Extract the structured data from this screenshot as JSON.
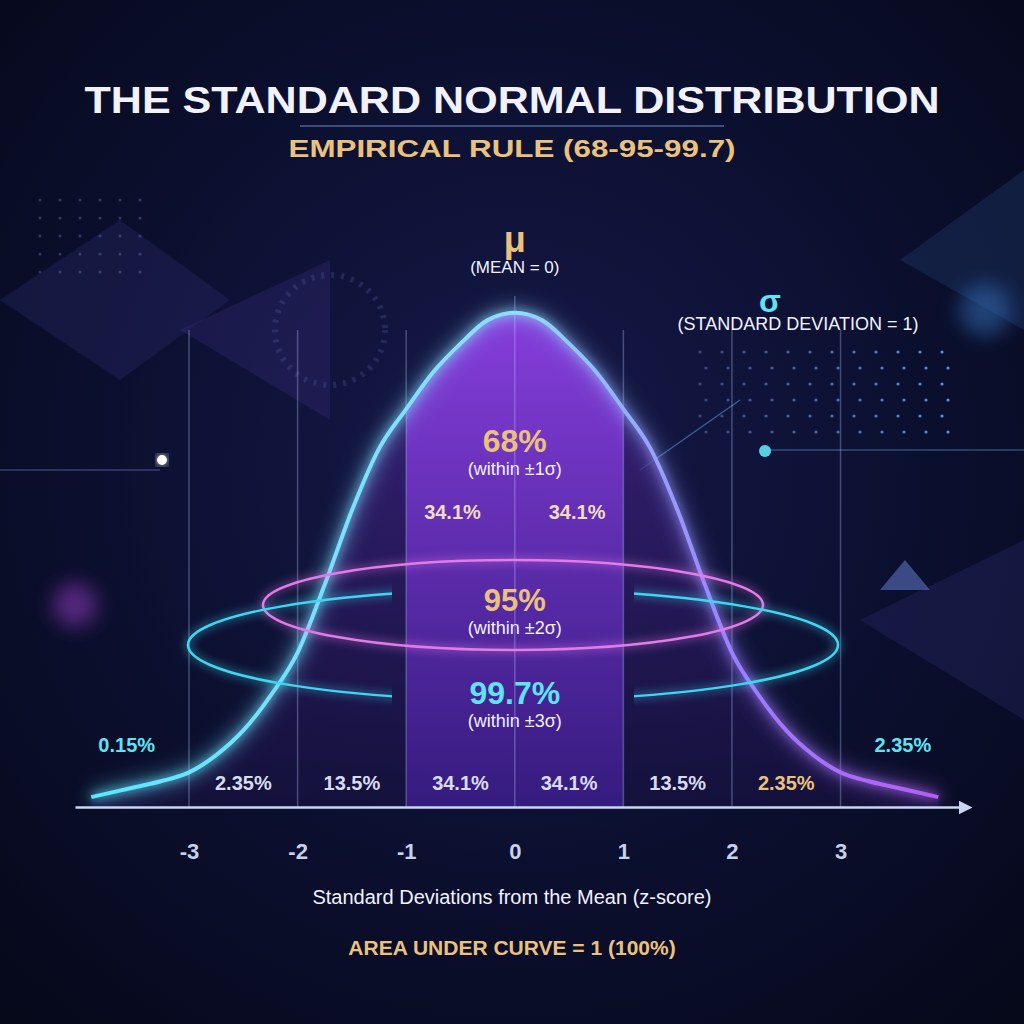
{
  "chart_data": {
    "type": "line",
    "title": "THE STANDARD NORMAL DISTRIBUTION",
    "subtitle": "EMPIRICAL RULE (68-95-99.7)",
    "xlabel": "Standard Deviations from the Mean (z-score)",
    "x": [
      -3.9,
      -3.5,
      -3.25,
      -3,
      -2.75,
      -2.5,
      -2.25,
      -2,
      -1.75,
      -1.5,
      -1.25,
      -1,
      -0.75,
      -0.5,
      -0.25,
      0,
      0.25,
      0.5,
      0.75,
      1,
      1.25,
      1.5,
      1.75,
      2,
      2.25,
      2.5,
      2.75,
      3,
      3.25,
      3.5,
      3.9
    ],
    "values": [
      0.008,
      0.016,
      0.021,
      0.028,
      0.042,
      0.062,
      0.09,
      0.125,
      0.18,
      0.24,
      0.29,
      0.322,
      0.352,
      0.375,
      0.394,
      0.4,
      0.394,
      0.375,
      0.352,
      0.322,
      0.29,
      0.24,
      0.18,
      0.125,
      0.09,
      0.062,
      0.042,
      0.028,
      0.021,
      0.016,
      0.008
    ],
    "color": "#5ce6ff",
    "xlim": [
      -4.05,
      4.1
    ],
    "xticks": [
      -3,
      -2,
      -1,
      0,
      1,
      2,
      3
    ],
    "ylim": [
      0,
      0.42
    ],
    "grid": true,
    "tick_labels": "x",
    "annotations": {
      "mean_symbol": "μ",
      "mean_label": "(MEAN = 0)",
      "sd_symbol": "σ",
      "sd_label": "(STANDARD DEVIATION = 1)",
      "footer": "AREA UNDER CURVE = 1 (100%)"
    },
    "intervals": {
      "values": [
        68,
        95,
        99.7
      ],
      "value_labels": [
        "68%",
        "95%",
        "99.7%"
      ],
      "notes": [
        "(within ±1σ)",
        "(within ±2σ)",
        "(within ±3σ)"
      ]
    },
    "center_bands": {
      "edges": [
        -1,
        0,
        1
      ],
      "values": [
        34.1,
        34.1
      ],
      "value_labels": [
        "34.1%",
        "34.1%"
      ]
    },
    "bands": {
      "edges": [
        -3,
        -2,
        -1,
        0,
        1,
        2,
        3
      ],
      "values": [
        2.35,
        13.5,
        34.1,
        34.1,
        13.5,
        2.35
      ],
      "value_labels": [
        "2.35%",
        "13.5%",
        "34.1%",
        "34.1%",
        "13.5%",
        "2.35%"
      ]
    },
    "tails": {
      "values": [
        0.15,
        2.35
      ],
      "value_labels": [
        "0.15%",
        "2.35%"
      ]
    }
  }
}
